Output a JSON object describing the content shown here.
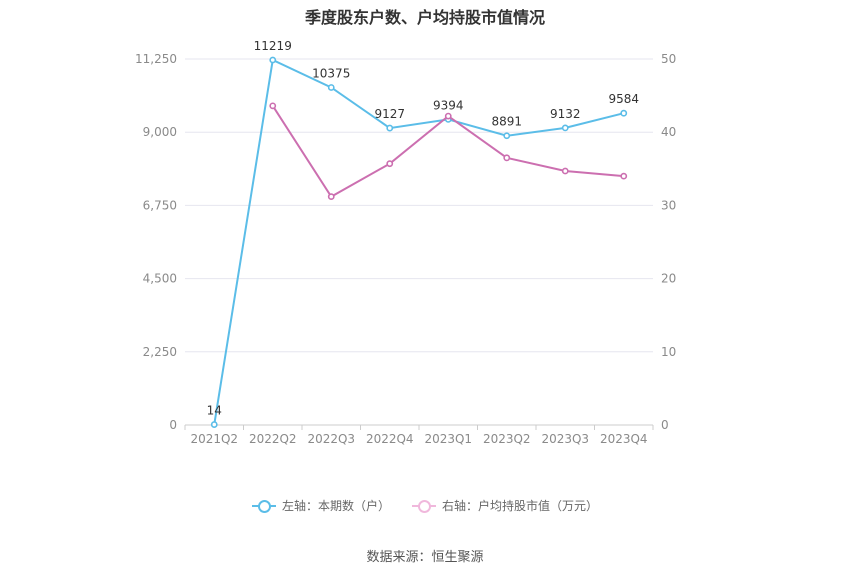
{
  "chart_data": {
    "type": "line",
    "title": "季度股东户数、户均持股市值情况",
    "categories": [
      "2021Q2",
      "2022Q2",
      "2022Q3",
      "2022Q4",
      "2023Q1",
      "2023Q2",
      "2023Q3",
      "2023Q4"
    ],
    "y_left": {
      "ticks": [
        "0",
        "2,250",
        "4,500",
        "6,750",
        "9,000",
        "11,250"
      ],
      "ylim": [
        0,
        11250
      ]
    },
    "y_right": {
      "ticks": [
        "0",
        "10",
        "20",
        "30",
        "40",
        "50"
      ],
      "ylim": [
        0,
        50
      ]
    },
    "series": [
      {
        "name": "左轴：本期数（户）",
        "axis": "left",
        "color": "#5bbde8",
        "values": [
          14,
          11219,
          10375,
          9127,
          9394,
          8891,
          9132,
          9584
        ],
        "labels": [
          "14",
          "11219",
          "10375",
          "9127",
          "9394",
          "8891",
          "9132",
          "9584"
        ]
      },
      {
        "name": "右轴：户均持股市值（万元）",
        "axis": "right",
        "color": "#cc6fb0",
        "values": [
          null,
          43.6,
          31.2,
          35.7,
          42.2,
          36.5,
          34.7,
          34.0
        ]
      }
    ],
    "grid": true,
    "legend_position": "bottom"
  },
  "source": "数据来源：恒生聚源"
}
